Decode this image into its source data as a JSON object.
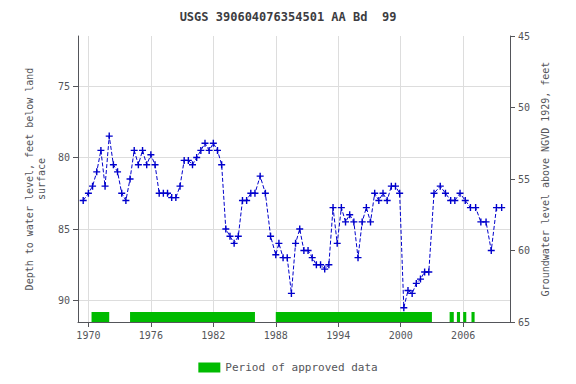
{
  "chart_data": {
    "type": "line",
    "title": "USGS 390604076354501 AA Bd  99",
    "y_label": "Depth to water level, feet below land\nsurface",
    "y2_label": "Groundwater level above NGVD 1929, feet",
    "x": [
      1969.5,
      1970.0,
      1970.4,
      1970.8,
      1971.2,
      1971.6,
      1972.0,
      1972.4,
      1972.8,
      1973.2,
      1973.6,
      1974.0,
      1974.4,
      1974.8,
      1975.2,
      1975.6,
      1976.0,
      1976.4,
      1976.8,
      1977.2,
      1977.6,
      1978.0,
      1978.4,
      1978.8,
      1979.2,
      1979.6,
      1980.0,
      1980.4,
      1980.8,
      1981.2,
      1981.6,
      1982.0,
      1982.4,
      1982.8,
      1983.2,
      1983.6,
      1984.0,
      1984.4,
      1984.8,
      1985.2,
      1985.6,
      1986.0,
      1986.5,
      1987.0,
      1987.5,
      1988.0,
      1988.3,
      1988.7,
      1989.1,
      1989.5,
      1989.9,
      1990.3,
      1990.7,
      1991.1,
      1991.5,
      1991.9,
      1992.3,
      1992.7,
      1993.1,
      1993.5,
      1993.9,
      1994.3,
      1994.7,
      1995.1,
      1995.5,
      1995.9,
      1996.3,
      1996.7,
      1997.1,
      1997.5,
      1997.9,
      1998.3,
      1998.7,
      1999.1,
      1999.5,
      1999.9,
      2000.3,
      2000.7,
      2001.1,
      2001.5,
      2001.9,
      2002.3,
      2002.7,
      2003.2,
      2003.8,
      2004.3,
      2004.8,
      2005.2,
      2005.7,
      2006.2,
      2006.7,
      2007.2,
      2007.7,
      2008.2,
      2008.7,
      2009.2,
      2009.7
    ],
    "series": [
      {
        "color": "#0000cc",
        "marker": "plus",
        "line_style": "dashed",
        "values": [
          83.0,
          82.5,
          82.0,
          81.0,
          79.5,
          82.0,
          78.5,
          80.5,
          81.0,
          82.5,
          83.0,
          81.5,
          79.5,
          80.5,
          79.5,
          80.5,
          79.8,
          80.5,
          82.5,
          82.5,
          82.5,
          82.8,
          82.8,
          82.0,
          80.2,
          80.2,
          80.5,
          80.0,
          79.5,
          79.0,
          79.5,
          79.0,
          79.5,
          80.5,
          85.0,
          85.5,
          86.0,
          85.5,
          83.0,
          83.0,
          82.5,
          82.5,
          81.3,
          82.5,
          85.5,
          86.8,
          86.0,
          87.0,
          87.0,
          89.5,
          86.0,
          85.0,
          86.5,
          86.5,
          87.0,
          87.5,
          87.5,
          87.8,
          87.5,
          83.5,
          86.0,
          83.5,
          84.5,
          84.0,
          84.5,
          87.0,
          84.5,
          83.5,
          84.5,
          82.5,
          83.0,
          82.5,
          83.0,
          82.0,
          82.0,
          82.5,
          90.5,
          89.3,
          89.5,
          88.8,
          88.5,
          88.0,
          88.0,
          82.5,
          82.0,
          82.5,
          83.0,
          83.0,
          82.5,
          83.0,
          83.5,
          83.5,
          84.5,
          84.5,
          86.5,
          83.5,
          83.5
        ]
      }
    ],
    "xlim": [
      1969.0,
      2010.5
    ],
    "xticks": [
      1970,
      1976,
      1982,
      1988,
      1994,
      2000,
      2006
    ],
    "ylim": [
      91.5,
      71.5
    ],
    "yticks": [
      75,
      80,
      85,
      90
    ],
    "y2lim": [
      65,
      45
    ],
    "y2ticks": [
      45,
      50,
      55,
      60,
      65
    ],
    "grid": true,
    "legend": "bottom",
    "approved_periods": {
      "name": "Period of approved data",
      "color": "#00bb00",
      "ranges": [
        [
          1970.3,
          1972.0
        ],
        [
          1974.0,
          1986.0
        ],
        [
          1988.0,
          2003.0
        ],
        [
          2004.7,
          2005.1
        ],
        [
          2005.4,
          2005.7
        ],
        [
          2006.0,
          2006.3
        ],
        [
          2006.8,
          2007.1
        ]
      ]
    }
  }
}
